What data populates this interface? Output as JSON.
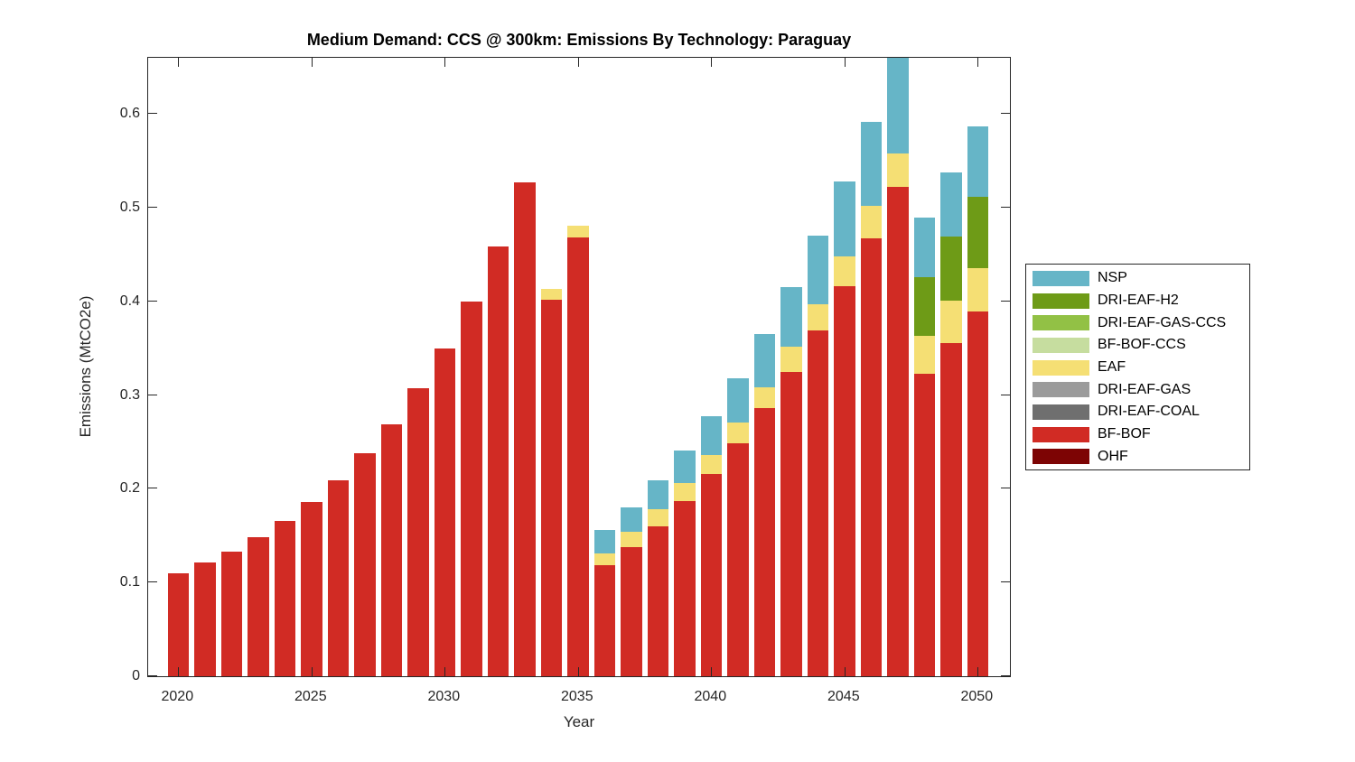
{
  "chart_data": {
    "type": "bar",
    "stacked": true,
    "title": "Medium Demand: CCS @ 300km: Emissions By Technology: Paraguay",
    "xlabel": "Year",
    "ylabel": "Emissions (MtCO2e)",
    "xlim": [
      2018.87,
      2051.21
    ],
    "ylim": [
      0,
      0.66
    ],
    "yticks": [
      0,
      0.1,
      0.2,
      0.3,
      0.4,
      0.5,
      0.6
    ],
    "ytick_labels": [
      "0",
      "0.1",
      "0.2",
      "0.3",
      "0.4",
      "0.5",
      "0.6"
    ],
    "xticks": [
      2020,
      2025,
      2030,
      2035,
      2040,
      2045,
      2050
    ],
    "years": [
      2020,
      2021,
      2022,
      2023,
      2024,
      2025,
      2026,
      2027,
      2028,
      2029,
      2030,
      2031,
      2032,
      2033,
      2034,
      2035,
      2036,
      2037,
      2038,
      2039,
      2040,
      2041,
      2042,
      2043,
      2044,
      2045,
      2046,
      2047,
      2048,
      2049,
      2050
    ],
    "bar_width_years": 0.8,
    "grid": false,
    "legend_position": "right-outside",
    "clipped_bars": [
      2047
    ],
    "series": [
      {
        "name": "OHF",
        "color": "#7D0404",
        "values": [
          0,
          0,
          0,
          0,
          0,
          0,
          0,
          0,
          0,
          0,
          0,
          0,
          0,
          0,
          0,
          0,
          0,
          0,
          0,
          0,
          0,
          0,
          0,
          0,
          0,
          0,
          0,
          0,
          0,
          0,
          0
        ]
      },
      {
        "name": "BF-BOF",
        "color": "#D12B24",
        "values": [
          0.11,
          0.121,
          0.133,
          0.148,
          0.166,
          0.186,
          0.209,
          0.238,
          0.269,
          0.307,
          0.35,
          0.4,
          0.459,
          0.527,
          0.402,
          0.468,
          0.119,
          0.138,
          0.16,
          0.187,
          0.216,
          0.249,
          0.286,
          0.325,
          0.369,
          0.416,
          0.467,
          0.522,
          0.323,
          0.356,
          0.389
        ]
      },
      {
        "name": "DRI-EAF-COAL",
        "color": "#6F6F6F",
        "values": [
          0,
          0,
          0,
          0,
          0,
          0,
          0,
          0,
          0,
          0,
          0,
          0,
          0,
          0,
          0,
          0,
          0,
          0,
          0,
          0,
          0,
          0,
          0,
          0,
          0,
          0,
          0,
          0,
          0,
          0,
          0
        ]
      },
      {
        "name": "DRI-EAF-GAS",
        "color": "#9B9B9B",
        "values": [
          0,
          0,
          0,
          0,
          0,
          0,
          0,
          0,
          0,
          0,
          0,
          0,
          0,
          0,
          0,
          0,
          0,
          0,
          0,
          0,
          0,
          0,
          0,
          0,
          0,
          0,
          0,
          0,
          0,
          0,
          0
        ]
      },
      {
        "name": "EAF",
        "color": "#F5DF74",
        "values": [
          0,
          0,
          0,
          0,
          0,
          0,
          0,
          0,
          0,
          0,
          0,
          0,
          0,
          0,
          0.011,
          0.013,
          0.012,
          0.016,
          0.018,
          0.019,
          0.02,
          0.022,
          0.022,
          0.027,
          0.028,
          0.032,
          0.035,
          0.036,
          0.04,
          0.045,
          0.047
        ]
      },
      {
        "name": "BF-BOF-CCS",
        "color": "#C6DD9F",
        "values": [
          0,
          0,
          0,
          0,
          0,
          0,
          0,
          0,
          0,
          0,
          0,
          0,
          0,
          0,
          0,
          0,
          0,
          0,
          0,
          0,
          0,
          0,
          0,
          0,
          0,
          0,
          0,
          0,
          0,
          0,
          0
        ]
      },
      {
        "name": "DRI-EAF-GAS-CCS",
        "color": "#92C145",
        "values": [
          0,
          0,
          0,
          0,
          0,
          0,
          0,
          0,
          0,
          0,
          0,
          0,
          0,
          0,
          0,
          0,
          0,
          0,
          0,
          0,
          0,
          0,
          0,
          0,
          0,
          0,
          0,
          0,
          0,
          0,
          0
        ]
      },
      {
        "name": "DRI-EAF-H2",
        "color": "#6E9B17",
        "values": [
          0,
          0,
          0,
          0,
          0,
          0,
          0,
          0,
          0,
          0,
          0,
          0,
          0,
          0,
          0,
          0,
          0,
          0,
          0,
          0,
          0,
          0,
          0,
          0,
          0,
          0,
          0,
          0,
          0.063,
          0.068,
          0.076
        ]
      },
      {
        "name": "NSP",
        "color": "#66B5C7",
        "values": [
          0,
          0,
          0,
          0,
          0,
          0,
          0,
          0,
          0,
          0,
          0,
          0,
          0,
          0,
          0,
          0,
          0.025,
          0.026,
          0.031,
          0.035,
          0.042,
          0.047,
          0.057,
          0.063,
          0.073,
          0.08,
          0.09,
          0.102,
          0.064,
          0.069,
          0.075
        ]
      }
    ],
    "legend": [
      "NSP",
      "DRI-EAF-H2",
      "DRI-EAF-GAS-CCS",
      "BF-BOF-CCS",
      "EAF",
      "DRI-EAF-GAS",
      "DRI-EAF-COAL",
      "BF-BOF",
      "OHF"
    ]
  }
}
